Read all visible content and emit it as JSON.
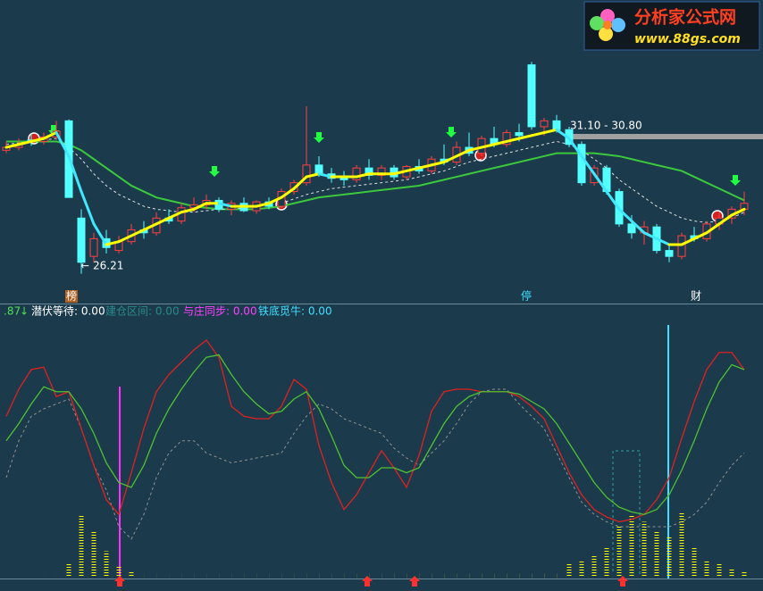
{
  "logo": {
    "title": "分析家公式网",
    "url": "www.88gs.com"
  },
  "legend": {
    "prefix": ".87",
    "items": [
      "潜伏等待: 0.00",
      "建仓区间: 0.00",
      "与庄同步: 0.00",
      "铁底觅牛: 0.00"
    ]
  },
  "markers": [
    "榜",
    "停",
    "财"
  ],
  "chart_data": [
    {
      "type": "candlestick",
      "annotations": [
        "26.21",
        "31.10 - 30.80"
      ],
      "ylim": [
        25.2,
        35.5
      ],
      "up_color": "#ff4040",
      "down_color": "#54ffff",
      "candles": [
        [
          30.4,
          30.7,
          30.3,
          30.5
        ],
        [
          30.5,
          30.8,
          30.4,
          30.6
        ],
        [
          30.75,
          30.95,
          30.55,
          30.7
        ],
        [
          30.7,
          31.0,
          30.6,
          30.85
        ],
        [
          30.85,
          31.4,
          30.75,
          31.05
        ],
        [
          31.4,
          31.45,
          28.8,
          28.8
        ],
        [
          28.1,
          28.4,
          26.21,
          26.6
        ],
        [
          26.8,
          27.6,
          26.6,
          27.4
        ],
        [
          27.4,
          27.7,
          26.9,
          27.1
        ],
        [
          27.0,
          27.5,
          26.9,
          27.3
        ],
        [
          27.3,
          27.9,
          27.2,
          27.7
        ],
        [
          27.7,
          28.0,
          27.4,
          27.6
        ],
        [
          27.6,
          28.3,
          27.5,
          28.1
        ],
        [
          28.1,
          28.4,
          27.9,
          28.0
        ],
        [
          28.0,
          28.6,
          27.9,
          28.45
        ],
        [
          28.45,
          28.8,
          28.3,
          28.55
        ],
        [
          28.55,
          28.9,
          28.4,
          28.7
        ],
        [
          28.7,
          28.8,
          28.3,
          28.4
        ],
        [
          28.4,
          28.7,
          28.2,
          28.6
        ],
        [
          28.6,
          28.8,
          28.3,
          28.35
        ],
        [
          28.35,
          28.7,
          28.25,
          28.65
        ],
        [
          28.65,
          28.8,
          28.4,
          28.5
        ],
        [
          28.5,
          29.1,
          28.45,
          29.0
        ],
        [
          29.0,
          29.4,
          28.9,
          29.3
        ],
        [
          29.3,
          31.9,
          29.2,
          29.9
        ],
        [
          29.9,
          30.2,
          29.5,
          29.6
        ],
        [
          29.6,
          29.8,
          29.3,
          29.45
        ],
        [
          29.45,
          29.7,
          29.2,
          29.4
        ],
        [
          29.4,
          29.9,
          29.3,
          29.8
        ],
        [
          29.8,
          30.1,
          29.4,
          29.55
        ],
        [
          29.55,
          29.9,
          29.4,
          29.8
        ],
        [
          29.8,
          29.9,
          29.4,
          29.5
        ],
        [
          29.5,
          29.9,
          29.4,
          29.85
        ],
        [
          29.85,
          30.1,
          29.6,
          29.7
        ],
        [
          29.7,
          30.2,
          29.6,
          30.1
        ],
        [
          30.1,
          30.6,
          29.9,
          30.0
        ],
        [
          30.0,
          30.7,
          29.9,
          30.5
        ],
        [
          30.5,
          31.0,
          30.2,
          30.3
        ],
        [
          30.3,
          30.9,
          30.2,
          30.8
        ],
        [
          30.8,
          31.2,
          30.5,
          30.6
        ],
        [
          30.6,
          31.1,
          30.5,
          31.0
        ],
        [
          31.0,
          31.3,
          30.7,
          30.9
        ],
        [
          33.3,
          33.4,
          31.1,
          31.2
        ],
        [
          31.2,
          31.5,
          30.9,
          31.4
        ],
        [
          31.4,
          31.6,
          31.0,
          31.1
        ],
        [
          31.1,
          31.2,
          30.5,
          30.6
        ],
        [
          30.6,
          30.7,
          29.2,
          29.3
        ],
        [
          29.3,
          29.9,
          29.2,
          29.8
        ],
        [
          29.8,
          29.9,
          28.9,
          29.0
        ],
        [
          29.0,
          29.1,
          27.8,
          27.9
        ],
        [
          27.9,
          28.2,
          27.4,
          27.6
        ],
        [
          27.6,
          28.0,
          27.2,
          27.8
        ],
        [
          27.8,
          27.9,
          26.9,
          27.0
        ],
        [
          27.0,
          27.2,
          26.6,
          26.8
        ],
        [
          26.8,
          27.6,
          26.7,
          27.5
        ],
        [
          27.5,
          27.8,
          27.3,
          27.4
        ],
        [
          27.4,
          28.0,
          27.3,
          27.9
        ],
        [
          27.9,
          28.3,
          27.7,
          28.1
        ],
        [
          28.1,
          28.5,
          27.9,
          28.4
        ],
        [
          28.4,
          29.0,
          28.2,
          28.6
        ]
      ],
      "series": [
        {
          "color": "#ffff00",
          "down_color": "#40e8ff",
          "width": 3,
          "values": [
            30.5,
            30.6,
            30.7,
            30.8,
            31.0,
            30.2,
            29.0,
            27.9,
            27.2,
            27.3,
            27.5,
            27.7,
            27.9,
            28.1,
            28.3,
            28.4,
            28.6,
            28.6,
            28.5,
            28.5,
            28.5,
            28.6,
            28.8,
            29.1,
            29.5,
            29.6,
            29.5,
            29.5,
            29.5,
            29.6,
            29.6,
            29.6,
            29.7,
            29.8,
            29.9,
            30.0,
            30.2,
            30.4,
            30.5,
            30.6,
            30.7,
            30.8,
            30.9,
            31.0,
            31.1,
            30.8,
            30.2,
            29.6,
            29.0,
            28.4,
            28.0,
            27.6,
            27.4,
            27.2,
            27.2,
            27.4,
            27.6,
            27.9,
            28.2,
            28.4
          ]
        },
        {
          "color": "#3cc83c",
          "width": 2,
          "values": [
            30.7,
            30.7,
            30.7,
            30.7,
            30.7,
            30.6,
            30.4,
            30.1,
            29.8,
            29.5,
            29.2,
            29.0,
            28.8,
            28.7,
            28.6,
            28.5,
            28.45,
            28.4,
            28.4,
            28.4,
            28.4,
            28.45,
            28.5,
            28.6,
            28.7,
            28.8,
            28.85,
            28.9,
            28.95,
            29.0,
            29.05,
            29.1,
            29.15,
            29.2,
            29.3,
            29.4,
            29.5,
            29.6,
            29.7,
            29.8,
            29.9,
            30.0,
            30.1,
            30.2,
            30.3,
            30.3,
            30.3,
            30.3,
            30.25,
            30.2,
            30.1,
            30.0,
            29.9,
            29.8,
            29.7,
            29.5,
            29.3,
            29.1,
            28.9,
            28.7
          ]
        },
        {
          "color": "#e0e0e0",
          "dashed": true,
          "width": 1,
          "values": [
            30.6,
            30.65,
            30.7,
            30.75,
            30.8,
            30.5,
            30.1,
            29.6,
            29.2,
            28.9,
            28.7,
            28.5,
            28.4,
            28.35,
            28.3,
            28.3,
            28.35,
            28.4,
            28.4,
            28.45,
            28.5,
            28.55,
            28.6,
            28.75,
            28.9,
            29.0,
            29.1,
            29.15,
            29.2,
            29.25,
            29.3,
            29.35,
            29.4,
            29.5,
            29.6,
            29.7,
            29.85,
            30.0,
            30.1,
            30.2,
            30.3,
            30.4,
            30.5,
            30.6,
            30.7,
            30.6,
            30.4,
            30.1,
            29.8,
            29.4,
            29.1,
            28.8,
            28.5,
            28.3,
            28.1,
            28.0,
            27.95,
            28.0,
            28.1,
            28.3
          ]
        }
      ]
    },
    {
      "type": "indicator",
      "ylim": [
        0,
        100
      ],
      "bars": {
        "color": "#ffff00",
        "values": [
          0,
          0,
          0,
          0,
          0,
          5,
          25,
          18,
          10,
          4,
          2,
          0,
          0,
          0,
          0,
          0,
          0,
          0,
          0,
          0,
          0,
          0,
          0,
          0,
          0,
          0,
          0,
          0,
          0,
          0,
          0,
          0,
          0,
          0,
          0,
          0,
          0,
          0,
          0,
          0,
          0,
          0,
          0,
          0,
          0,
          5,
          6,
          8,
          12,
          20,
          25,
          22,
          18,
          16,
          26,
          12,
          6,
          5,
          3,
          2
        ]
      },
      "series": [
        {
          "color": "#909090",
          "dashed": true,
          "width": 1,
          "values": [
            40,
            55,
            65,
            68,
            70,
            72,
            60,
            45,
            35,
            20,
            15,
            25,
            40,
            50,
            55,
            55,
            50,
            48,
            46,
            47,
            48,
            49,
            50,
            58,
            65,
            70,
            68,
            64,
            62,
            60,
            58,
            52,
            48,
            45,
            50,
            55,
            62,
            70,
            75,
            76,
            76,
            70,
            65,
            60,
            50,
            40,
            30,
            25,
            22,
            20,
            20,
            20,
            20,
            20,
            22,
            25,
            30,
            38,
            45,
            50
          ]
        },
        {
          "color": "#e02020",
          "width": 1.3,
          "values": [
            65,
            76,
            84,
            85,
            73,
            75,
            60,
            45,
            31,
            25,
            42,
            60,
            75,
            82,
            87,
            92,
            96,
            89,
            69,
            65,
            64,
            64,
            69,
            80,
            76,
            53,
            38,
            27,
            33,
            42,
            51,
            44,
            36,
            49,
            67,
            75,
            76,
            76,
            75,
            75,
            75,
            73,
            69,
            64,
            53,
            42,
            33,
            27,
            24,
            22,
            23,
            25,
            31,
            40,
            56,
            71,
            84,
            91,
            91,
            84
          ]
        },
        {
          "color": "#50c030",
          "width": 1.3,
          "values": [
            55,
            62,
            70,
            77,
            75,
            75,
            68,
            58,
            46,
            38,
            36,
            45,
            58,
            68,
            76,
            83,
            89,
            90,
            82,
            75,
            70,
            66,
            67,
            72,
            75,
            68,
            57,
            45,
            40,
            40,
            44,
            44,
            42,
            44,
            53,
            62,
            69,
            73,
            75,
            75,
            75,
            74,
            71,
            68,
            62,
            54,
            46,
            38,
            32,
            28,
            26,
            25,
            27,
            33,
            43,
            55,
            68,
            79,
            86,
            84
          ]
        }
      ]
    }
  ]
}
